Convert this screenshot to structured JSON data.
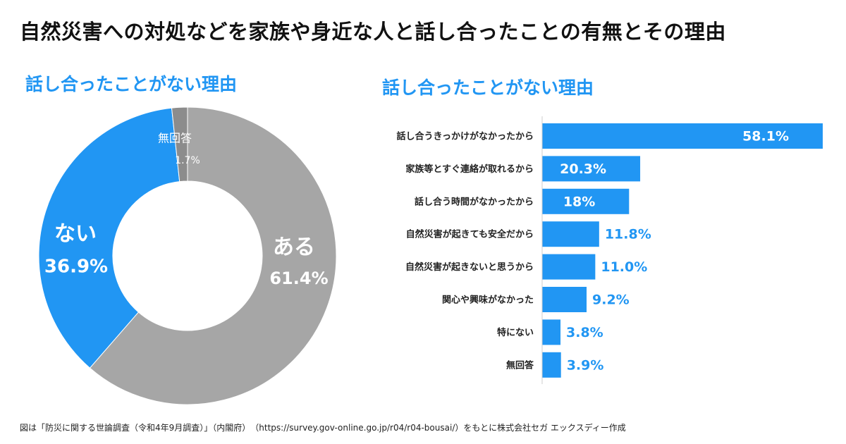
{
  "page": {
    "title": "自然災害への対処などを家族や身近な人と話し合ったことの有無とその理由",
    "source": "図は「防災に関する世論調査（令和4年9月調査）」（内閣府）　（https://survey.gov-online.go.jp/r04/r04-bousai/）をもとに株式会社セガ エックスディー作成"
  },
  "colors": {
    "accent": "#2196f3",
    "gray": "#a6a6a6",
    "dark_gray": "#8c8c8c",
    "title": "#111111"
  },
  "chart_data": [
    {
      "type": "pie",
      "title": "話し合ったことがない理由",
      "slices": [
        {
          "name": "ある",
          "value": 61.4,
          "value_label": "61.4%",
          "color": "#a6a6a6"
        },
        {
          "name": "ない",
          "value": 36.9,
          "value_label": "36.9%",
          "color": "#2196f3"
        },
        {
          "name": "無回答",
          "value": 1.7,
          "value_label": "1.7%",
          "color": "#8c8c8c"
        }
      ]
    },
    {
      "type": "bar",
      "orientation": "horizontal",
      "title": "話し合ったことがない理由",
      "categories": [
        "話し合うきっかけがなかったから",
        "家族等とすぐ連絡が取れるから",
        "話し合う時間がなかったから",
        "自然災害が起きても安全だから",
        "自然災害が起きないと思うから",
        "関心や興味がなかった",
        "特にない",
        "無回答"
      ],
      "values": [
        58.1,
        20.3,
        18,
        11.8,
        11.0,
        9.2,
        3.8,
        3.9
      ],
      "value_labels": [
        "58.1%",
        "20.3%",
        "18%",
        "11.8%",
        "11.0%",
        "9.2%",
        "3.8%",
        "3.9%"
      ],
      "xlim": [
        0,
        58.1
      ],
      "color": "#2196f3"
    }
  ]
}
